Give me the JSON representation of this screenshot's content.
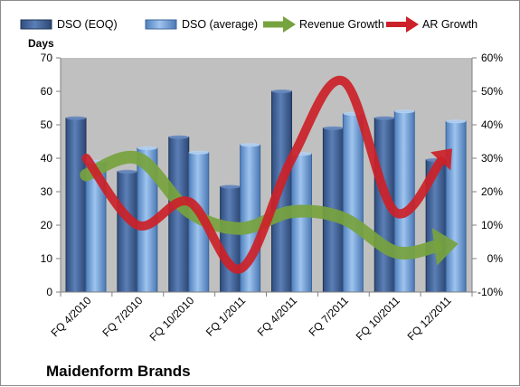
{
  "chart_data": {
    "type": "bar",
    "categories": [
      "FQ 4/2010",
      "FQ 7/2010",
      "FQ 10/2010",
      "FQ 1/2011",
      "FQ 4/2011",
      "FQ 7/2011",
      "FQ 10/2011",
      "FQ 12/2011"
    ],
    "series": [
      {
        "name": "DSO (EOQ)",
        "type": "bar",
        "axis": "left",
        "values": [
          52,
          36,
          46.3,
          31.5,
          60,
          49,
          52,
          39.5
        ],
        "color": "#4a6a9e"
      },
      {
        "name": "DSO (average)",
        "type": "bar",
        "axis": "left",
        "values": [
          39,
          43,
          41.7,
          44,
          41.3,
          53.3,
          54,
          51
        ],
        "color": "#7aa6dc"
      },
      {
        "name": "Revenue Growth",
        "type": "line",
        "axis": "right",
        "values": [
          0.25,
          0.3,
          0.14,
          0.09,
          0.14,
          0.12,
          0.02,
          0.04
        ],
        "color": "#77a33e"
      },
      {
        "name": "AR Growth",
        "type": "line",
        "axis": "right",
        "values": [
          0.3,
          0.1,
          0.17,
          -0.03,
          0.3,
          0.53,
          0.14,
          0.31
        ],
        "color": "#cc2128"
      }
    ],
    "ylabel": "Days",
    "ylim": [
      0,
      70
    ],
    "yticks": [
      "0",
      "10",
      "20",
      "30",
      "40",
      "50",
      "60",
      "70"
    ],
    "y2lim": [
      -0.1,
      0.6
    ],
    "y2ticks": [
      "-10%",
      "0%",
      "10%",
      "20%",
      "30%",
      "40%",
      "50%",
      "60%"
    ],
    "legend": "top",
    "grid": false,
    "plot_background": "#c0c0c0"
  },
  "company": "Maidenform Brands"
}
